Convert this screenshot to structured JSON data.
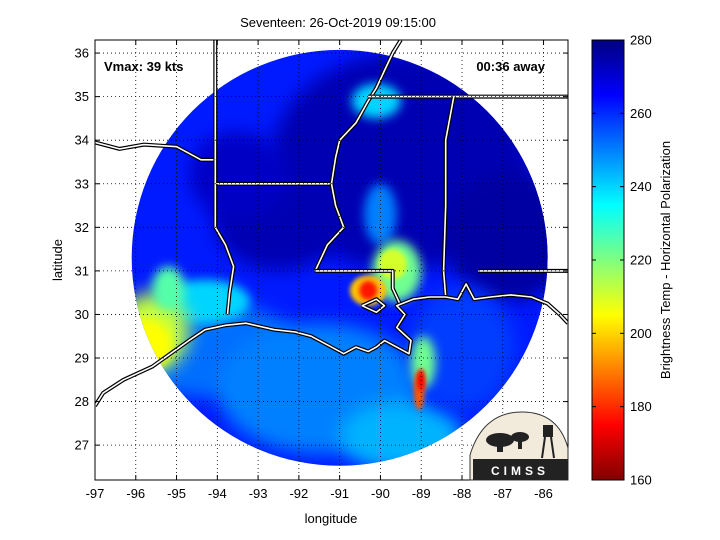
{
  "chart_data": {
    "type": "heatmap",
    "title": "Seventeen: 26-Oct-2019 09:15:00",
    "xlabel": "longitude",
    "ylabel": "latitude",
    "xlim": [
      -97,
      -85.4
    ],
    "ylim": [
      26.2,
      36.3
    ],
    "xticks": [
      -97,
      -96,
      -95,
      -94,
      -93,
      -92,
      -91,
      -90,
      -89,
      -88,
      -87,
      -86
    ],
    "yticks": [
      27,
      28,
      29,
      30,
      31,
      32,
      33,
      34,
      35,
      36
    ],
    "grid": true,
    "annotations": {
      "vmax": "Vmax: 39 kts",
      "time_away": "00:36 away"
    },
    "colorbar": {
      "label": "Brightness Temp - Horizontal Polarization",
      "range": [
        160,
        280
      ],
      "ticks": [
        160,
        180,
        200,
        220,
        240,
        260,
        280
      ],
      "colormap": "jet"
    },
    "swath": {
      "center_lon": -91.0,
      "center_lat": 31.3,
      "radius_deg": 5.1
    },
    "features": [
      {
        "name": "Cold core north of New Orleans",
        "lon": -90.3,
        "lat": 30.55,
        "value": 178
      },
      {
        "name": "Rain band south of Mississippi coast",
        "lon": -89.05,
        "lat": 28.2,
        "value": 182
      },
      {
        "name": "Warm Texas coast region",
        "lon": -95.8,
        "lat": 29.4,
        "value": 205
      },
      {
        "name": "Band over eastern Louisiana",
        "lon": -89.8,
        "lat": 31.1,
        "value": 215
      }
    ]
  },
  "logo": {
    "text": "CIMSS"
  }
}
